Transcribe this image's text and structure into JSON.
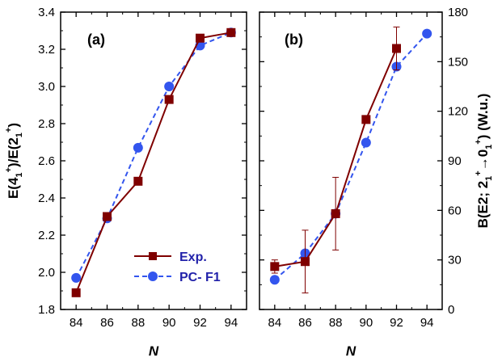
{
  "chart_data": [
    {
      "type": "line",
      "panel_label": "(a)",
      "xlabel": "N",
      "ylabel": "E(4",
      "x": [
        84,
        86,
        88,
        90,
        92,
        94
      ],
      "xlim": [
        83,
        95
      ],
      "ylim": [
        1.8,
        3.4
      ],
      "xticks": [
        84,
        86,
        88,
        90,
        92,
        94
      ],
      "yticks": [
        "1.8",
        "2.0",
        "2.2",
        "2.4",
        "2.6",
        "2.8",
        "3.0",
        "3.2",
        "3.4"
      ],
      "series": [
        {
          "name": "Exp.",
          "color": "#7f0000",
          "marker": "square",
          "line": "solid",
          "values": [
            1.89,
            2.3,
            2.49,
            2.93,
            3.26,
            3.29
          ]
        },
        {
          "name": "PC- F1",
          "color": "#3355ee",
          "marker": "circle",
          "line": "dashed",
          "values": [
            1.97,
            2.29,
            2.67,
            3.0,
            3.22,
            3.29
          ]
        }
      ],
      "legend": {
        "position": "bottom-right",
        "entries": [
          "Exp.",
          "PC- F1"
        ]
      }
    },
    {
      "type": "line",
      "panel_label": "(b)",
      "xlabel": "N",
      "ylabel": "B(E2; 2",
      "x": [
        84,
        86,
        88,
        90,
        92,
        94
      ],
      "xlim": [
        83,
        95
      ],
      "ylim": [
        0,
        180
      ],
      "xticks": [
        84,
        86,
        88,
        90,
        92,
        94
      ],
      "yticks": [
        "0",
        "30",
        "60",
        "90",
        "120",
        "150",
        "180"
      ],
      "series": [
        {
          "name": "Exp.",
          "color": "#7f0000",
          "marker": "square",
          "line": "solid",
          "x": [
            84,
            86,
            88,
            90,
            92
          ],
          "values": [
            26,
            29,
            58,
            115,
            158
          ],
          "err": [
            4,
            19,
            22,
            0,
            13
          ]
        },
        {
          "name": "PC- F1",
          "color": "#3355ee",
          "marker": "circle",
          "line": "dashed",
          "x": [
            84,
            86,
            88,
            90,
            92,
            94
          ],
          "values": [
            18,
            34,
            58,
            101,
            147,
            167
          ]
        }
      ]
    }
  ]
}
